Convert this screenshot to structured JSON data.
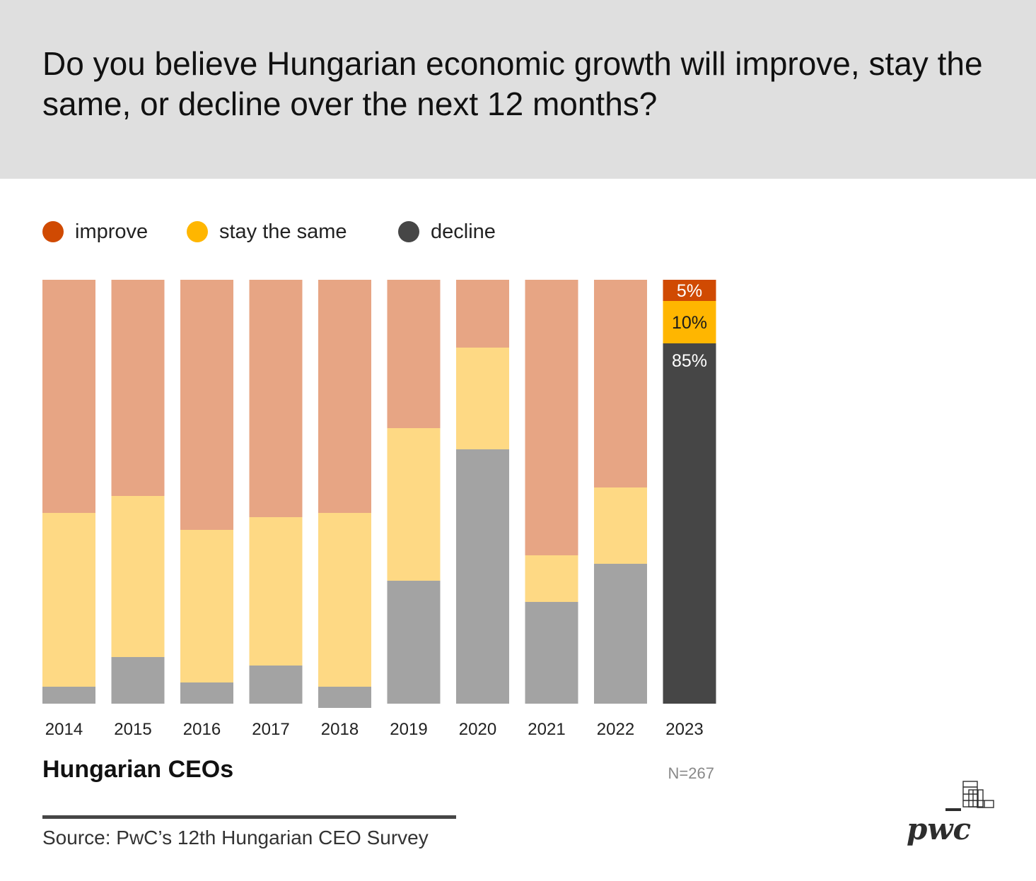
{
  "title": "Do you believe Hungarian economic growth will improve, stay the same, or decline over the next 12 months?",
  "legend": [
    {
      "label": "improve",
      "color": "#d04a02"
    },
    {
      "label": "stay the same",
      "color": "#ffb600"
    },
    {
      "label": "decline",
      "color": "#464646"
    }
  ],
  "chart_data": {
    "type": "bar",
    "stacked": true,
    "title": "Do you believe Hungarian economic growth will improve, stay the same, or decline over the next 12 months?",
    "xlabel": "",
    "ylabel": "",
    "ylim": [
      0,
      100
    ],
    "categories": [
      "2014",
      "2015",
      "2016",
      "2017",
      "2018",
      "2019",
      "2020",
      "2021",
      "2022",
      "2023"
    ],
    "series": [
      {
        "name": "improve",
        "values": [
          55,
          51,
          59,
          56,
          55,
          35,
          16,
          65,
          49,
          5
        ],
        "color": "#d04a02",
        "muted_color": "#e7a584"
      },
      {
        "name": "stay the same",
        "values": [
          41,
          38,
          36,
          35,
          41,
          36,
          24,
          11,
          18,
          10
        ],
        "color": "#ffb600",
        "muted_color": "#fed984"
      },
      {
        "name": "decline",
        "values": [
          4,
          11,
          5,
          9,
          5,
          29,
          60,
          24,
          33,
          85
        ],
        "color": "#464646",
        "muted_color": "#a3a3a3"
      }
    ],
    "highlight_category": "2023",
    "data_labels": {
      "2023": [
        "5%",
        "10%",
        "85%"
      ]
    }
  },
  "subtitle": "Hungarian CEOs",
  "sample_size": "N=267",
  "source": "Source: PwC’s 12th Hungarian CEO Survey",
  "logo_text": "pwc"
}
